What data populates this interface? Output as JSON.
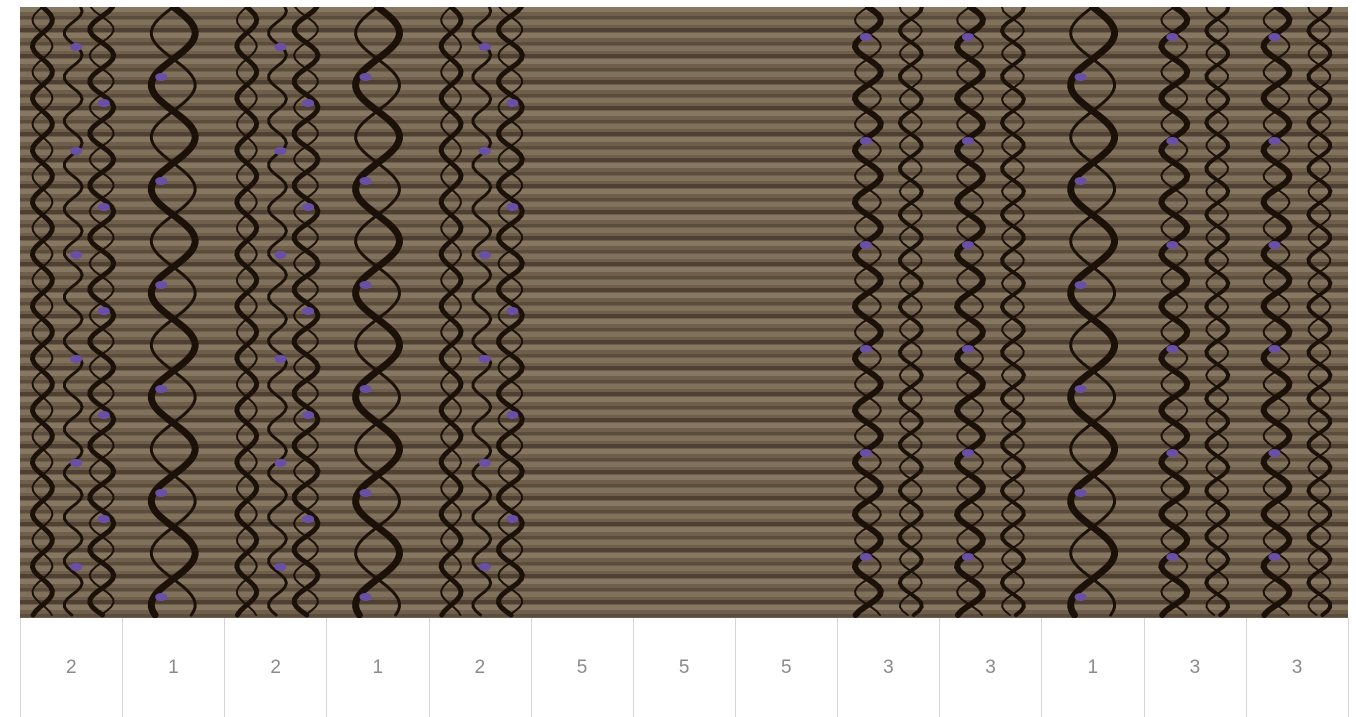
{
  "artwork": {
    "description_icon": "woven-wave-pattern-image",
    "colors": {
      "base": "#6e5e4a",
      "stripe_light": "#8b7c66",
      "stripe_dark": "#4a3e31",
      "wave": "#1c1109",
      "accent": "#6a4fa6"
    },
    "columns": [
      {
        "type": "dense-wave"
      },
      {
        "type": "large-wave"
      },
      {
        "type": "dense-wave"
      },
      {
        "type": "large-wave"
      },
      {
        "type": "dense-wave"
      },
      {
        "type": "plain"
      },
      {
        "type": "plain"
      },
      {
        "type": "plain"
      },
      {
        "type": "double-wave"
      },
      {
        "type": "double-wave"
      },
      {
        "type": "large-wave"
      },
      {
        "type": "double-wave"
      },
      {
        "type": "double-wave"
      }
    ]
  },
  "strip": {
    "labels": [
      "2",
      "1",
      "2",
      "1",
      "2",
      "5",
      "5",
      "5",
      "3",
      "3",
      "1",
      "3",
      "3"
    ]
  }
}
